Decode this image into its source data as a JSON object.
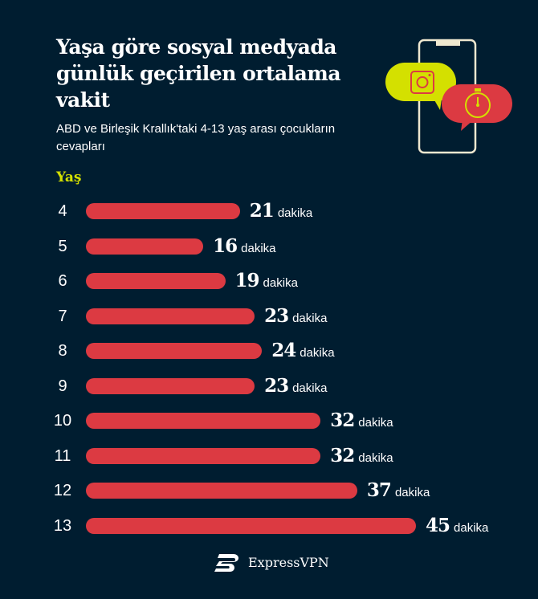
{
  "title": "Yaşa göre sosyal medyada günlük geçirilen ortalama vakit",
  "subtitle": "ABD ve Birleşik Krallık'taki 4-13 yaş arası çocukların cevapları",
  "brand": "ExpressVPN",
  "colors": {
    "background": "#001d30",
    "bar": "#dc3a42",
    "accent": "#d4e000"
  },
  "icons": [
    "phone-icon",
    "instagram-icon",
    "stopwatch-icon",
    "expressvpn-logo-icon"
  ],
  "chart_data": {
    "type": "bar",
    "orientation": "horizontal",
    "ylabel": "Yaş",
    "unit": "dakika",
    "categories": [
      "4",
      "5",
      "6",
      "7",
      "8",
      "9",
      "10",
      "11",
      "12",
      "13"
    ],
    "values": [
      21,
      16,
      19,
      23,
      24,
      23,
      32,
      32,
      37,
      45
    ]
  }
}
